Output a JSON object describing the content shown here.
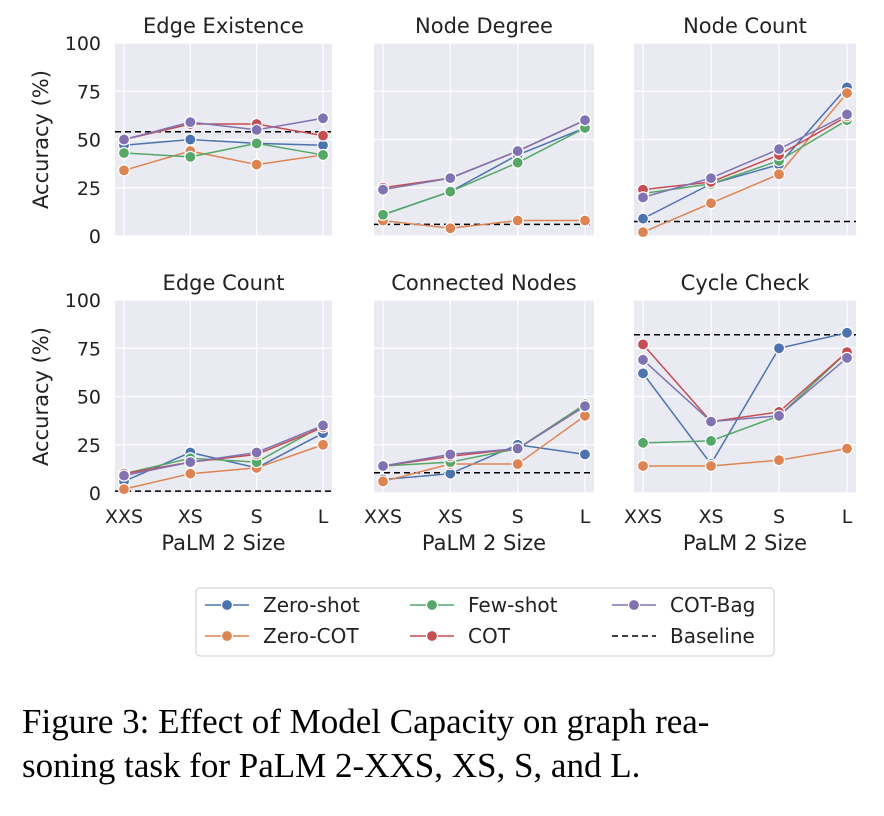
{
  "figure": {
    "caption_line1": "Figure 3: Effect of Model Capacity on graph rea-",
    "caption_line2": "soning task for PaLM 2-XXS, XS, S, and L."
  },
  "colors": {
    "Zero-shot": "#4c72b0",
    "Zero-COT": "#dd8452",
    "Few-shot": "#55a868",
    "COT": "#c44e52",
    "COT-Bag": "#8172b3",
    "Baseline": "#000000",
    "panel_bg": "#eaeaf2"
  },
  "legend": {
    "entries": [
      "Zero-shot",
      "Few-shot",
      "COT-Bag",
      "Zero-COT",
      "COT",
      "Baseline"
    ],
    "placement": "bottom-center"
  },
  "chart_data": [
    {
      "type": "line",
      "title": "Edge Existence",
      "xlabel": "",
      "ylabel": "Accuracy (%)",
      "categories": [
        "XXS",
        "XS",
        "S",
        "L"
      ],
      "ylim": [
        0,
        100
      ],
      "yticks": [
        0,
        25,
        50,
        75,
        100
      ],
      "grid": true,
      "baseline": 54,
      "series": [
        {
          "name": "Zero-shot",
          "values": [
            47,
            50,
            48,
            47
          ]
        },
        {
          "name": "Zero-COT",
          "values": [
            34,
            44,
            37,
            42
          ]
        },
        {
          "name": "Few-shot",
          "values": [
            43,
            41,
            48,
            42
          ]
        },
        {
          "name": "COT",
          "values": [
            50,
            58,
            58,
            52
          ]
        },
        {
          "name": "COT-Bag",
          "values": [
            50,
            59,
            55,
            61
          ]
        }
      ]
    },
    {
      "type": "line",
      "title": "Node Degree",
      "xlabel": "",
      "ylabel": "",
      "categories": [
        "XXS",
        "XS",
        "S",
        "L"
      ],
      "ylim": [
        0,
        100
      ],
      "yticks": [
        0,
        25,
        50,
        75,
        100
      ],
      "grid": true,
      "baseline": 6,
      "series": [
        {
          "name": "Zero-shot",
          "values": [
            11,
            23,
            42,
            56
          ]
        },
        {
          "name": "Zero-COT",
          "values": [
            8,
            4,
            8,
            8
          ]
        },
        {
          "name": "Few-shot",
          "values": [
            11,
            23,
            38,
            56
          ]
        },
        {
          "name": "COT",
          "values": [
            25,
            30,
            44,
            60
          ]
        },
        {
          "name": "COT-Bag",
          "values": [
            24,
            30,
            44,
            60
          ]
        }
      ]
    },
    {
      "type": "line",
      "title": "Node Count",
      "xlabel": "",
      "ylabel": "",
      "categories": [
        "XXS",
        "XS",
        "S",
        "L"
      ],
      "ylim": [
        0,
        100
      ],
      "yticks": [
        0,
        25,
        50,
        75,
        100
      ],
      "grid": true,
      "baseline": 7.5,
      "series": [
        {
          "name": "Zero-shot",
          "values": [
            9,
            27,
            37,
            77
          ]
        },
        {
          "name": "Zero-COT",
          "values": [
            2,
            17,
            32,
            74
          ]
        },
        {
          "name": "Few-shot",
          "values": [
            22,
            27,
            39,
            60
          ]
        },
        {
          "name": "COT",
          "values": [
            24,
            28,
            42,
            62
          ]
        },
        {
          "name": "COT-Bag",
          "values": [
            20,
            30,
            45,
            63
          ]
        }
      ]
    },
    {
      "type": "line",
      "title": "Edge Count",
      "xlabel": "PaLM 2 Size",
      "ylabel": "Accuracy (%)",
      "categories": [
        "XXS",
        "XS",
        "S",
        "L"
      ],
      "ylim": [
        0,
        100
      ],
      "yticks": [
        0,
        25,
        50,
        75,
        100
      ],
      "grid": true,
      "baseline": 1,
      "series": [
        {
          "name": "Zero-shot",
          "values": [
            6,
            21,
            13,
            31
          ]
        },
        {
          "name": "Zero-COT",
          "values": [
            2,
            10,
            13,
            25
          ]
        },
        {
          "name": "Few-shot",
          "values": [
            10,
            18,
            16,
            35
          ]
        },
        {
          "name": "COT",
          "values": [
            10,
            16,
            20,
            34
          ]
        },
        {
          "name": "COT-Bag",
          "values": [
            9,
            16,
            21,
            35
          ]
        }
      ]
    },
    {
      "type": "line",
      "title": "Connected Nodes",
      "xlabel": "PaLM 2 Size",
      "ylabel": "",
      "categories": [
        "XXS",
        "XS",
        "S",
        "L"
      ],
      "ylim": [
        0,
        100
      ],
      "yticks": [
        0,
        25,
        50,
        75,
        100
      ],
      "grid": true,
      "baseline": 10.5,
      "series": [
        {
          "name": "Zero-shot",
          "values": [
            7,
            10,
            25,
            20
          ]
        },
        {
          "name": "Zero-COT",
          "values": [
            6,
            15,
            15,
            40
          ]
        },
        {
          "name": "Few-shot",
          "values": [
            14,
            16,
            23,
            46
          ]
        },
        {
          "name": "COT",
          "values": [
            14,
            19,
            23,
            45
          ]
        },
        {
          "name": "COT-Bag",
          "values": [
            14,
            20,
            23,
            45
          ]
        }
      ]
    },
    {
      "type": "line",
      "title": "Cycle Check",
      "xlabel": "PaLM 2 Size",
      "ylabel": "",
      "categories": [
        "XXS",
        "XS",
        "S",
        "L"
      ],
      "ylim": [
        0,
        100
      ],
      "yticks": [
        0,
        25,
        50,
        75,
        100
      ],
      "grid": true,
      "baseline": 82,
      "series": [
        {
          "name": "Zero-shot",
          "values": [
            62,
            15,
            75,
            83
          ]
        },
        {
          "name": "Zero-COT",
          "values": [
            14,
            14,
            17,
            23
          ]
        },
        {
          "name": "Few-shot",
          "values": [
            26,
            27,
            40,
            73
          ]
        },
        {
          "name": "COT",
          "values": [
            77,
            37,
            42,
            73
          ]
        },
        {
          "name": "COT-Bag",
          "values": [
            69,
            37,
            40,
            70
          ]
        }
      ]
    }
  ]
}
